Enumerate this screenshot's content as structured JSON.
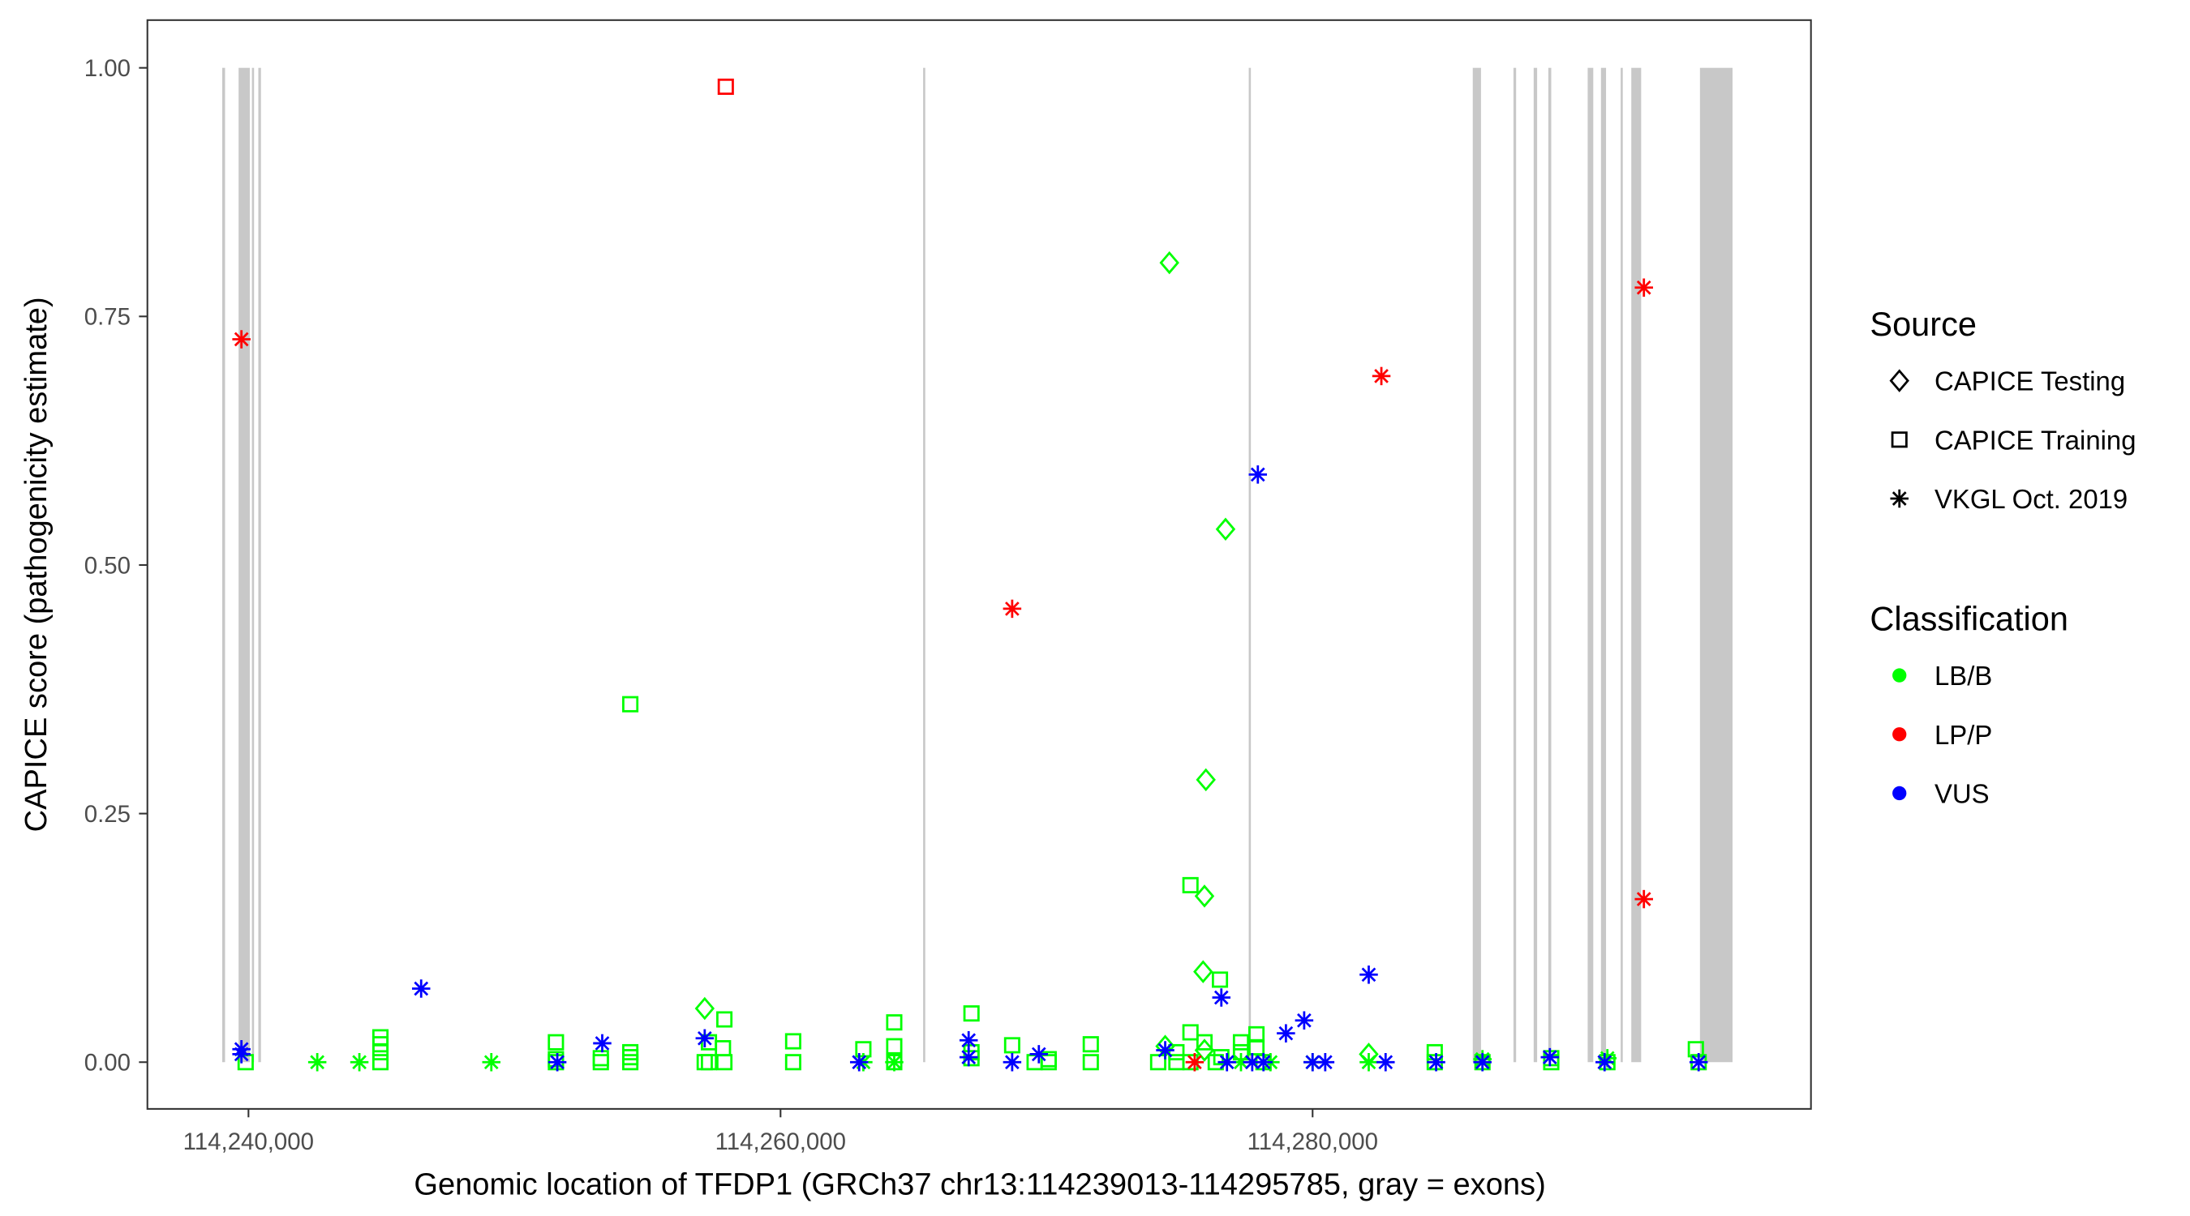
{
  "chart_data": {
    "type": "scatter",
    "title": "",
    "xlabel": "Genomic location of TFDP1 (GRCh37 chr13:114239013-114295785, gray = exons)",
    "ylabel": "CAPICE score (pathogenicity estimate)",
    "xlim": [
      114236201,
      114298733
    ],
    "ylim": [
      -0.047,
      1.048
    ],
    "x_ticks": [
      114240000,
      114260000,
      114280000
    ],
    "x_tick_labels": [
      "114,240,000",
      "114,260,000",
      "114,280,000"
    ],
    "y_ticks": [
      0,
      0.25,
      0.5,
      0.75,
      1.0
    ],
    "y_tick_labels": [
      "0.00",
      "0.25",
      "0.50",
      "0.75",
      "1.00"
    ],
    "grid": false,
    "legend_position": "right",
    "legend": {
      "source_title": "Source",
      "source_items": [
        {
          "key": "T",
          "label": "CAPICE Testing",
          "shape": "diamond"
        },
        {
          "key": "R",
          "label": "CAPICE Training",
          "shape": "square"
        },
        {
          "key": "V",
          "label": "VKGL Oct. 2019",
          "shape": "asterisk"
        }
      ],
      "class_title": "Classification",
      "class_items": [
        {
          "key": "B",
          "label": "LB/B",
          "color": "#00ff00"
        },
        {
          "key": "P",
          "label": "LP/P",
          "color": "#ff0000"
        },
        {
          "key": "U",
          "label": "VUS",
          "color": "#0000ff"
        }
      ]
    },
    "exon_color": "#c8c8c8",
    "exons": [
      [
        114239013,
        114239120
      ],
      [
        114239630,
        114240050
      ],
      [
        114240130,
        114240210
      ],
      [
        114240370,
        114240470
      ],
      [
        114265360,
        114265440
      ],
      [
        114277600,
        114277680
      ],
      [
        114286020,
        114286330
      ],
      [
        114287550,
        114287650
      ],
      [
        114288310,
        114288440
      ],
      [
        114288860,
        114288970
      ],
      [
        114290340,
        114290550
      ],
      [
        114290840,
        114291030
      ],
      [
        114291580,
        114291660
      ],
      [
        114291980,
        114292350
      ],
      [
        114294560,
        114295785
      ]
    ],
    "point_fields": [
      "position",
      "score",
      "source",
      "classification"
    ],
    "points": [
      [
        114239894,
        0.0,
        "R",
        "B"
      ],
      [
        114242586,
        0.0,
        "V",
        "B"
      ],
      [
        114244169,
        0.0,
        "V",
        "B"
      ],
      [
        114244960,
        0.025,
        "R",
        "B"
      ],
      [
        114244960,
        0.018,
        "R",
        "B"
      ],
      [
        114244960,
        0.01,
        "R",
        "B"
      ],
      [
        114244960,
        0.0,
        "R",
        "B"
      ],
      [
        114249129,
        0.0,
        "V",
        "B"
      ],
      [
        114251557,
        0.02,
        "R",
        "B"
      ],
      [
        114251557,
        0.0,
        "R",
        "B"
      ],
      [
        114251557,
        0.003,
        "R",
        "B"
      ],
      [
        114253245,
        0.0,
        "R",
        "B"
      ],
      [
        114253245,
        0.004,
        "R",
        "B"
      ],
      [
        114254353,
        0.36,
        "R",
        "B"
      ],
      [
        114254353,
        0.01,
        "R",
        "B"
      ],
      [
        114254353,
        0.005,
        "R",
        "B"
      ],
      [
        114254353,
        0.0,
        "R",
        "B"
      ],
      [
        114257150,
        0.054,
        "T",
        "B"
      ],
      [
        114257309,
        0.02,
        "R",
        "B"
      ],
      [
        114257150,
        0.0,
        "R",
        "B"
      ],
      [
        114257309,
        0.0,
        "R",
        "B"
      ],
      [
        114257836,
        0.014,
        "R",
        "B"
      ],
      [
        114257889,
        0.043,
        "R",
        "B"
      ],
      [
        114257889,
        0.0,
        "R",
        "B"
      ],
      [
        114260475,
        0.021,
        "R",
        "B"
      ],
      [
        114260475,
        0.0,
        "R",
        "B"
      ],
      [
        114263113,
        0.013,
        "R",
        "B"
      ],
      [
        114263113,
        0.0,
        "V",
        "B"
      ],
      [
        114264274,
        0.04,
        "R",
        "B"
      ],
      [
        114264274,
        0.016,
        "R",
        "B"
      ],
      [
        114264274,
        0.0,
        "R",
        "B"
      ],
      [
        114264274,
        0.0,
        "V",
        "B"
      ],
      [
        114267177,
        0.049,
        "R",
        "B"
      ],
      [
        114267177,
        0.01,
        "R",
        "B"
      ],
      [
        114267177,
        0.004,
        "R",
        "B"
      ],
      [
        114268707,
        0.017,
        "R",
        "B"
      ],
      [
        114269551,
        0.0,
        "R",
        "B"
      ],
      [
        114270079,
        0.0,
        "R",
        "B"
      ],
      [
        114270079,
        0.003,
        "R",
        "B"
      ],
      [
        114271662,
        0.018,
        "R",
        "B"
      ],
      [
        114271662,
        0.0,
        "R",
        "B"
      ],
      [
        114274195,
        0.0,
        "R",
        "B"
      ],
      [
        114274459,
        0.016,
        "T",
        "B"
      ],
      [
        114274617,
        0.804,
        "T",
        "B"
      ],
      [
        114274881,
        0.01,
        "R",
        "B"
      ],
      [
        114274881,
        0.0,
        "R",
        "B"
      ],
      [
        114275409,
        0.178,
        "R",
        "B"
      ],
      [
        114275409,
        0.03,
        "R",
        "B"
      ],
      [
        114275409,
        0.0,
        "R",
        "B"
      ],
      [
        114275884,
        0.091,
        "T",
        "B"
      ],
      [
        114275936,
        0.167,
        "T",
        "B"
      ],
      [
        114275989,
        0.284,
        "T",
        "B"
      ],
      [
        114275936,
        0.02,
        "R",
        "B"
      ],
      [
        114275936,
        0.012,
        "T",
        "B"
      ],
      [
        114276359,
        0.0,
        "R",
        "B"
      ],
      [
        114276517,
        0.083,
        "R",
        "B"
      ],
      [
        114276728,
        0.536,
        "T",
        "B"
      ],
      [
        114276570,
        0.005,
        "R",
        "B"
      ],
      [
        114277308,
        0.02,
        "R",
        "B"
      ],
      [
        114277308,
        0.01,
        "R",
        "B"
      ],
      [
        114277889,
        0.028,
        "R",
        "B"
      ],
      [
        114277889,
        0.015,
        "R",
        "B"
      ],
      [
        114277308,
        0.0,
        "V",
        "B"
      ],
      [
        114278153,
        0.0,
        "R",
        "B"
      ],
      [
        114278417,
        0.0,
        "V",
        "B"
      ],
      [
        114280000,
        0.0,
        "V",
        "B"
      ],
      [
        114282110,
        0.008,
        "T",
        "B"
      ],
      [
        114282110,
        0.0,
        "V",
        "B"
      ],
      [
        114284591,
        0.01,
        "R",
        "B"
      ],
      [
        114284591,
        0.0,
        "R",
        "B"
      ],
      [
        114286385,
        0.0,
        "R",
        "B"
      ],
      [
        114286385,
        0.003,
        "V",
        "B"
      ],
      [
        114288971,
        0.0,
        "R",
        "B"
      ],
      [
        114288971,
        0.004,
        "R",
        "B"
      ],
      [
        114291081,
        0.0,
        "R",
        "B"
      ],
      [
        114291081,
        0.004,
        "V",
        "B"
      ],
      [
        114294406,
        0.013,
        "R",
        "B"
      ],
      [
        114294511,
        0.0,
        "R",
        "B"
      ],
      [
        114239736,
        0.727,
        "V",
        "P"
      ],
      [
        114257942,
        0.981,
        "R",
        "P"
      ],
      [
        114268707,
        0.456,
        "V",
        "P"
      ],
      [
        114275567,
        0.0,
        "V",
        "P"
      ],
      [
        114282585,
        0.69,
        "V",
        "P"
      ],
      [
        114292453,
        0.779,
        "V",
        "P"
      ],
      [
        114292453,
        0.164,
        "V",
        "P"
      ],
      [
        114239736,
        0.013,
        "V",
        "U"
      ],
      [
        114239736,
        0.008,
        "V",
        "U"
      ],
      [
        114246491,
        0.074,
        "V",
        "U"
      ],
      [
        114251609,
        0.0,
        "V",
        "U"
      ],
      [
        114253298,
        0.019,
        "V",
        "U"
      ],
      [
        114257150,
        0.024,
        "V",
        "U"
      ],
      [
        114262955,
        0.0,
        "V",
        "U"
      ],
      [
        114267071,
        0.022,
        "V",
        "U"
      ],
      [
        114267071,
        0.005,
        "V",
        "U"
      ],
      [
        114268707,
        0.0,
        "V",
        "U"
      ],
      [
        114269710,
        0.008,
        "V",
        "U"
      ],
      [
        114274459,
        0.012,
        "V",
        "U"
      ],
      [
        114276570,
        0.065,
        "V",
        "U"
      ],
      [
        114276781,
        0.0,
        "V",
        "U"
      ],
      [
        114277731,
        0.0,
        "V",
        "U"
      ],
      [
        114277942,
        0.591,
        "V",
        "U"
      ],
      [
        114278153,
        0.0,
        "V",
        "U"
      ],
      [
        114278997,
        0.029,
        "V",
        "U"
      ],
      [
        114279683,
        0.042,
        "V",
        "U"
      ],
      [
        114280000,
        0.0,
        "V",
        "U"
      ],
      [
        114280475,
        0.0,
        "V",
        "U"
      ],
      [
        114282110,
        0.088,
        "V",
        "U"
      ],
      [
        114282744,
        0.0,
        "V",
        "U"
      ],
      [
        114284643,
        0.0,
        "V",
        "U"
      ],
      [
        114286385,
        0.0,
        "V",
        "U"
      ],
      [
        114288918,
        0.005,
        "V",
        "U"
      ],
      [
        114290976,
        0.0,
        "V",
        "U"
      ],
      [
        114294511,
        0.0,
        "V",
        "U"
      ]
    ]
  }
}
